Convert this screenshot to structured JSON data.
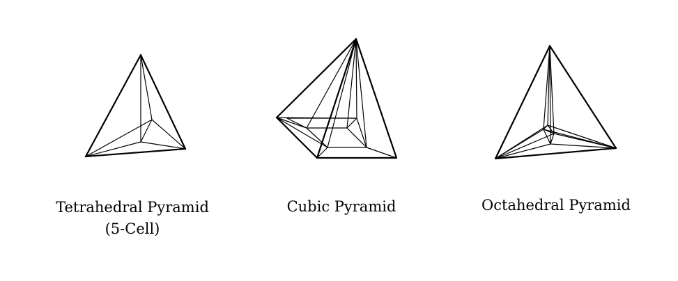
{
  "figures": [
    {
      "id": "tetrahedral",
      "caption_lines": [
        "Tetrahedral Pyramid",
        "(5-Cell)"
      ]
    },
    {
      "id": "cubic",
      "caption_lines": [
        "Cubic Pyramid"
      ]
    },
    {
      "id": "octahedral",
      "caption_lines": [
        "Octahedral Pyramid"
      ]
    }
  ]
}
